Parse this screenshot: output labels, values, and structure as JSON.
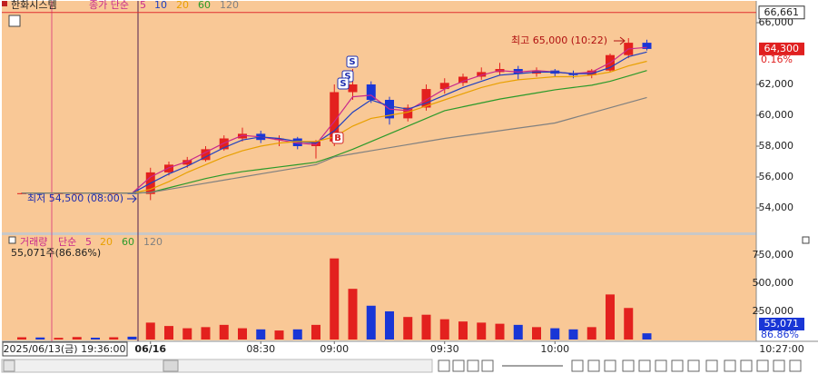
{
  "chart_data": [
    {
      "type": "candlestick",
      "title": "한화시스템",
      "ma_label": "종가 단순",
      "categories": [
        null,
        null,
        null,
        null,
        null,
        null,
        null,
        "06/16",
        null,
        null,
        null,
        null,
        null,
        "08:30",
        null,
        null,
        null,
        "09:00",
        null,
        null,
        null,
        null,
        null,
        "09:30",
        null,
        null,
        null,
        null,
        null,
        "10:00",
        null,
        null,
        null,
        null,
        null
      ],
      "open": [
        54950,
        54950,
        54900,
        54950,
        54950,
        54900,
        54950,
        54900,
        56300,
        56800,
        57100,
        57800,
        58500,
        58800,
        58400,
        58500,
        58000,
        58300,
        61500,
        62000,
        61000,
        59800,
        60500,
        61700,
        62100,
        62500,
        62800,
        63000,
        62700,
        62900,
        62700,
        62600,
        62900,
        63900,
        64700
      ],
      "high": [
        55000,
        54990,
        55000,
        55000,
        55000,
        55000,
        55000,
        56600,
        57000,
        57300,
        58000,
        58700,
        59200,
        59000,
        58700,
        58600,
        58400,
        62000,
        63000,
        62200,
        61200,
        60700,
        62000,
        62400,
        62700,
        63100,
        63400,
        63200,
        63100,
        63000,
        62900,
        63000,
        64000,
        65000,
        64900
      ],
      "low": [
        54900,
        54900,
        54880,
        54900,
        54900,
        54880,
        54900,
        54500,
        56100,
        56600,
        57000,
        57700,
        58300,
        58200,
        58000,
        57800,
        57200,
        58000,
        61000,
        60800,
        59400,
        59600,
        60300,
        61400,
        61900,
        62300,
        62600,
        62300,
        62500,
        62500,
        62400,
        62400,
        62800,
        63700,
        64200
      ],
      "close": [
        54950,
        54900,
        54950,
        54950,
        54900,
        54950,
        54900,
        56300,
        56800,
        57100,
        57800,
        58500,
        58800,
        58400,
        58500,
        58000,
        58300,
        61500,
        62000,
        61000,
        59800,
        60500,
        61700,
        62100,
        62500,
        62800,
        63000,
        62700,
        62900,
        62700,
        62600,
        62900,
        63900,
        64700,
        64300
      ],
      "up_color": "#e3211e",
      "down_color": "#1936d6",
      "series": [
        {
          "name": "5",
          "color": "#c8288c",
          "values": [
            54950,
            54950,
            54950,
            54950,
            54950,
            54950,
            54950,
            56000,
            56600,
            57000,
            57600,
            58200,
            58700,
            58600,
            58400,
            58200,
            58100,
            59600,
            61200,
            61300,
            60400,
            60300,
            61000,
            61700,
            62200,
            62600,
            62900,
            62800,
            62900,
            62800,
            62700,
            62800,
            63400,
            64300,
            64400
          ]
        },
        {
          "name": "10",
          "color": "#2040c0",
          "values": [
            54950,
            54950,
            54950,
            54950,
            54950,
            54950,
            54950,
            55600,
            56200,
            56700,
            57300,
            57900,
            58400,
            58600,
            58500,
            58300,
            58200,
            59000,
            60200,
            61000,
            60600,
            60400,
            60800,
            61300,
            61800,
            62200,
            62600,
            62700,
            62800,
            62800,
            62700,
            62700,
            63100,
            63800,
            64100
          ]
        },
        {
          "name": "20",
          "color": "#e8a000",
          "values": [
            54950,
            54950,
            54950,
            54950,
            54950,
            54950,
            54950,
            55200,
            55700,
            56300,
            56800,
            57300,
            57700,
            58000,
            58200,
            58300,
            58300,
            58600,
            59300,
            59800,
            60000,
            60200,
            60600,
            61000,
            61400,
            61800,
            62100,
            62300,
            62400,
            62500,
            62500,
            62600,
            62800,
            63200,
            63500
          ]
        },
        {
          "name": "60",
          "color": "#2a9a2a",
          "values": [
            54950,
            54950,
            54950,
            54950,
            54950,
            54950,
            54950,
            55000,
            55300,
            55600,
            55900,
            56150,
            56350,
            56500,
            56650,
            56800,
            56950,
            57350,
            57800,
            58300,
            58800,
            59300,
            59800,
            60300,
            60550,
            60800,
            61050,
            61250,
            61450,
            61650,
            61800,
            61950,
            62200,
            62550,
            62900
          ]
        },
        {
          "name": "120",
          "color": "#808080",
          "values": [
            54950,
            54950,
            54950,
            54950,
            54950,
            54950,
            54950,
            55000,
            55200,
            55400,
            55600,
            55800,
            56000,
            56200,
            56400,
            56600,
            56800,
            57300,
            57500,
            57700,
            57900,
            58100,
            58300,
            58500,
            58670,
            58830,
            59000,
            59170,
            59330,
            59500,
            59830,
            60160,
            60490,
            60820,
            61150
          ]
        }
      ],
      "ylim": [
        52470,
        67000
      ],
      "yticks": [
        {
          "value": 54000,
          "label": "54,000"
        },
        {
          "value": 56000,
          "label": "56,000"
        },
        {
          "value": 58000,
          "label": "58,000"
        },
        {
          "value": 60000,
          "label": "60,000"
        },
        {
          "value": 62000,
          "label": "62,000"
        },
        {
          "value": 66000,
          "label": "66,000"
        }
      ],
      "grid": false,
      "reference_line": {
        "value": 66661,
        "label": "66,661",
        "color": "#e03030"
      },
      "current": {
        "value": 64300,
        "label": "64,300"
      },
      "change": "0.16%",
      "high_note": "최고 65,000 (10:22)",
      "low_note": "최저 54,500 (08:00)",
      "signals": [
        "S",
        "S",
        "S",
        "B"
      ],
      "crosshair_label": "2025/06/13(금) 19:36:00",
      "time_label": "10:27:00"
    },
    {
      "type": "bar",
      "title": "거래량",
      "ma_label": "단순",
      "ma_legend": [
        {
          "name": "5",
          "color": "#c8288c"
        },
        {
          "name": "20",
          "color": "#e8a000"
        },
        {
          "name": "60",
          "color": "#2a9a2a"
        },
        {
          "name": "120",
          "color": "#808080"
        }
      ],
      "summary": "55,071주(86.86%)",
      "values": [
        20000,
        18000,
        15000,
        22000,
        16000,
        20000,
        25000,
        150000,
        120000,
        100000,
        110000,
        130000,
        100000,
        90000,
        80000,
        90000,
        130000,
        720000,
        450000,
        300000,
        250000,
        200000,
        220000,
        180000,
        160000,
        150000,
        140000,
        130000,
        110000,
        100000,
        90000,
        110000,
        400000,
        280000,
        55071
      ],
      "ylim": [
        0,
        935000
      ],
      "yticks": [
        {
          "value": 250000,
          "label": "250,000"
        },
        {
          "value": 500000,
          "label": "500,000"
        },
        {
          "value": 750000,
          "label": "750,000"
        }
      ],
      "current": {
        "value": 55071,
        "label": "55,071"
      },
      "ratio": "86.86%"
    }
  ]
}
